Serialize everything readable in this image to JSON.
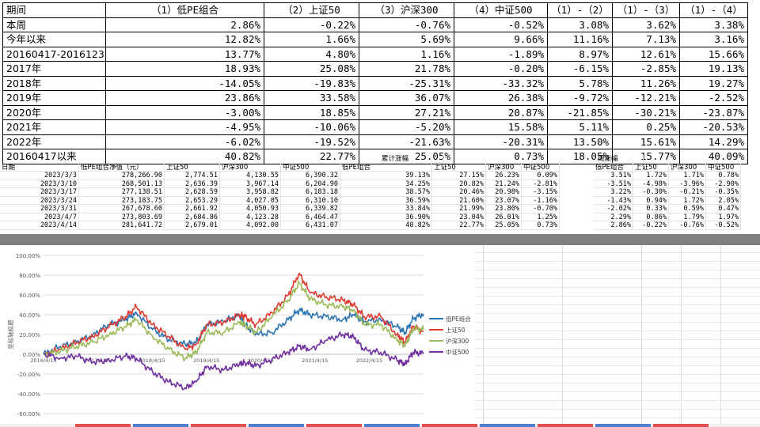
{
  "summary": {
    "headers": [
      "期间",
      "（1）低PE组合",
      "（2）上证50",
      "（3）沪深300",
      "（4）中证500",
      "（1）-（2）",
      "（1）-（3）",
      "（1）-（4）"
    ],
    "rows": [
      [
        "本周",
        "2.86%",
        "-0.22%",
        "-0.76%",
        "-0.52%",
        "3.08%",
        "3.62%",
        "3.38%"
      ],
      [
        "今年以来",
        "12.82%",
        "1.66%",
        "5.69%",
        "9.66%",
        "11.16%",
        "7.13%",
        "3.16%"
      ],
      [
        "20160417-20161231",
        "13.77%",
        "4.80%",
        "1.16%",
        "-1.89%",
        "8.97%",
        "12.61%",
        "15.66%"
      ],
      [
        "2017年",
        "18.93%",
        "25.08%",
        "21.78%",
        "-0.20%",
        "-6.15%",
        "-2.85%",
        "19.13%"
      ],
      [
        "2018年",
        "-14.05%",
        "-19.83%",
        "-25.31%",
        "-33.32%",
        "5.78%",
        "11.26%",
        "19.27%"
      ],
      [
        "2019年",
        "23.86%",
        "33.58%",
        "36.07%",
        "26.38%",
        "-9.72%",
        "-12.21%",
        "-2.52%"
      ],
      [
        "2020年",
        "-3.00%",
        "18.85%",
        "27.21%",
        "20.87%",
        "-21.85%",
        "-30.21%",
        "-23.87%"
      ],
      [
        "2021年",
        "-4.95%",
        "-10.06%",
        "-5.20%",
        "15.58%",
        "5.11%",
        "0.25%",
        "-20.53%"
      ],
      [
        "2022年",
        "-6.02%",
        "-19.52%",
        "-21.63%",
        "-20.31%",
        "13.50%",
        "15.61%",
        "14.29%"
      ],
      [
        "20160417以来",
        "40.82%",
        "22.77%",
        "25.05%",
        "0.73%",
        "18.05%",
        "15.77%",
        "40.09%"
      ]
    ]
  },
  "sheet": {
    "group_cumulative": "累计涨幅",
    "group_weekly": "周涨幅",
    "headers": [
      "日期",
      "低PE组合净值（元）",
      "上证50",
      "沪深300",
      "中证500",
      "低PE组合",
      "上证50",
      "沪深300",
      "中证500",
      "低PE组合",
      "上证50",
      "沪深300",
      "中证500"
    ],
    "rows": [
      [
        "2023/3/3",
        "278,266.90",
        "2,774.51",
        "4,130.55",
        "6,390.32",
        "39.13%",
        "27.15%",
        "26.23%",
        "0.09%",
        "3.51%",
        "1.72%",
        "1.71%",
        "0.78%"
      ],
      [
        "2023/3/10",
        "268,501.13",
        "2,636.39",
        "3,967.14",
        "6,204.90",
        "34.25%",
        "20.82%",
        "21.24%",
        "-2.81%",
        "-3.51%",
        "-4.98%",
        "-3.96%",
        "-2.90%"
      ],
      [
        "2023/3/17",
        "277,138.51",
        "2,628.59",
        "3,958.82",
        "6,183.18",
        "38.57%",
        "20.46%",
        "20.98%",
        "-3.15%",
        "3.22%",
        "-0.30%",
        "-0.21%",
        "-0.35%"
      ],
      [
        "2023/3/24",
        "273,183.75",
        "2,653.29",
        "4,027.05",
        "6,310.10",
        "36.59%",
        "21.60%",
        "23.07%",
        "-1.16%",
        "-1.43%",
        "0.94%",
        "1.72%",
        "2.05%"
      ],
      [
        "2023/3/31",
        "267,678.60",
        "2,661.92",
        "4,050.93",
        "6,339.82",
        "33.84%",
        "21.99%",
        "23.80%",
        "-0.70%",
        "-2.02%",
        "0.33%",
        "0.59%",
        "0.47%"
      ],
      [
        "2023/4/7",
        "273,803.69",
        "2,684.86",
        "4,123.28",
        "6,464.47",
        "36.90%",
        "23.04%",
        "26.01%",
        "1.25%",
        "2.29%",
        "0.86%",
        "1.79%",
        "1.97%"
      ],
      [
        "2023/4/14",
        "281,641.72",
        "2,679.01",
        "4,092.00",
        "6,431.07",
        "40.82%",
        "22.77%",
        "25.05%",
        "0.73%",
        "2.86%",
        "-0.22%",
        "-0.76%",
        "-0.52%"
      ]
    ]
  },
  "chart_data": {
    "type": "line",
    "title": "",
    "xlabel": "",
    "ylabel": "坐标轴标题",
    "ylim": [
      -60,
      100
    ],
    "y_ticks": [
      "100.00%",
      "80.00%",
      "60.00%",
      "40.00%",
      "20.00%",
      "0.00%",
      "-20.00%",
      "-40.00%",
      "-60.00%"
    ],
    "x_ticks": [
      "2016/4/15",
      "2017/4/15",
      "2018/4/15",
      "2019/4/15",
      "2020/4/15",
      "2021/4/15",
      "2022/4/15"
    ],
    "x_range": [
      2016.29,
      2023.29
    ],
    "legend_position": "right",
    "series": [
      {
        "name": "低PE组合",
        "color": "#2e75b6",
        "x": [
          2016.29,
          2016.6,
          2016.9,
          2017.2,
          2017.5,
          2017.8,
          2018.0,
          2018.3,
          2018.6,
          2018.9,
          2019.1,
          2019.3,
          2019.6,
          2019.9,
          2020.0,
          2020.2,
          2020.5,
          2020.8,
          2021.0,
          2021.2,
          2021.5,
          2021.8,
          2022.0,
          2022.2,
          2022.5,
          2022.8,
          2022.95,
          2023.1,
          2023.29
        ],
        "values": [
          0,
          8,
          12,
          20,
          30,
          35,
          42,
          25,
          15,
          10,
          12,
          30,
          33,
          40,
          30,
          20,
          22,
          35,
          45,
          40,
          38,
          35,
          40,
          33,
          35,
          28,
          22,
          36,
          40.82
        ]
      },
      {
        "name": "上证50",
        "color": "#e03c31",
        "x": [
          2016.29,
          2016.6,
          2016.9,
          2017.2,
          2017.5,
          2017.8,
          2018.0,
          2018.3,
          2018.6,
          2018.9,
          2019.1,
          2019.3,
          2019.6,
          2019.9,
          2020.0,
          2020.2,
          2020.5,
          2020.8,
          2021.0,
          2021.2,
          2021.5,
          2021.8,
          2022.0,
          2022.2,
          2022.5,
          2022.8,
          2022.95,
          2023.1,
          2023.29
        ],
        "values": [
          0,
          5,
          12,
          18,
          28,
          38,
          48,
          30,
          18,
          5,
          10,
          30,
          32,
          40,
          38,
          30,
          42,
          60,
          82,
          62,
          58,
          55,
          50,
          38,
          38,
          20,
          12,
          28,
          22.77
        ]
      },
      {
        "name": "沪深300",
        "color": "#9bbb59",
        "x": [
          2016.29,
          2016.6,
          2016.9,
          2017.2,
          2017.5,
          2017.8,
          2018.0,
          2018.3,
          2018.6,
          2018.9,
          2019.1,
          2019.3,
          2019.6,
          2019.9,
          2020.0,
          2020.2,
          2020.5,
          2020.8,
          2021.0,
          2021.2,
          2021.5,
          2021.8,
          2022.0,
          2022.2,
          2022.5,
          2022.8,
          2022.95,
          2023.1,
          2023.29
        ],
        "values": [
          0,
          3,
          8,
          12,
          20,
          28,
          35,
          18,
          5,
          -4,
          2,
          22,
          22,
          32,
          30,
          22,
          38,
          55,
          72,
          56,
          50,
          48,
          45,
          30,
          30,
          15,
          8,
          26,
          25.05
        ]
      },
      {
        "name": "中证500",
        "color": "#7030a0",
        "x": [
          2016.29,
          2016.6,
          2016.9,
          2017.2,
          2017.5,
          2017.8,
          2018.0,
          2018.3,
          2018.6,
          2018.9,
          2019.1,
          2019.3,
          2019.6,
          2019.9,
          2020.0,
          2020.2,
          2020.5,
          2020.8,
          2021.0,
          2021.2,
          2021.5,
          2021.8,
          2022.0,
          2022.2,
          2022.5,
          2022.8,
          2022.95,
          2023.1,
          2023.29
        ],
        "values": [
          0,
          -4,
          -2,
          -8,
          -6,
          -2,
          -4,
          -18,
          -28,
          -34,
          -28,
          -12,
          -16,
          -10,
          -8,
          -12,
          -5,
          2,
          8,
          5,
          14,
          20,
          18,
          4,
          2,
          -6,
          -10,
          2,
          0.73
        ]
      }
    ]
  }
}
